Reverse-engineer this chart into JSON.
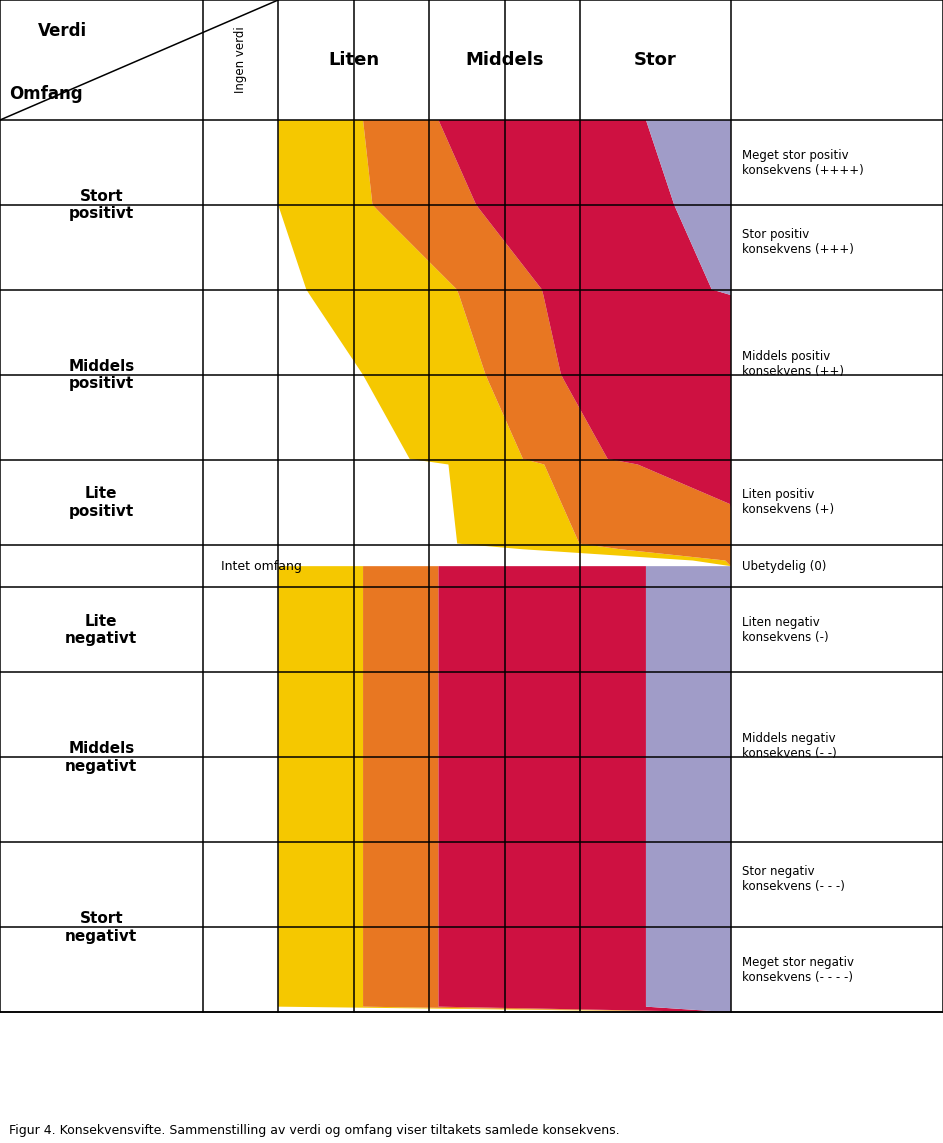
{
  "caption": "Figur 4. Konsekvensvifte. Sammenstilling av verdi og omfang viser tiltakets samlede konsekvens.",
  "colors": {
    "yellow": "#F5C800",
    "orange": "#E87722",
    "red": "#CE1141",
    "purple": "#A09CC8",
    "white": "#FFFFFF",
    "border": "#000000"
  },
  "col_header_labels": [
    "Ingen verdi",
    "Liten",
    "Middels",
    "Stor"
  ],
  "row_labels": [
    "Stort\npositivt",
    "Middels\npositivt",
    "Lite\npositivt",
    "Intet omfang",
    "Lite\nnegativt",
    "Middels\nnegativt",
    "Stort\nnegativt"
  ],
  "consequence_labels": [
    "Meget stor positiv\nkonsekvens (++++)",
    "Stor positiv\nkonsekvens (+++)",
    "Middels positiv\nkonsekvens (++)",
    "Liten positiv\nkonsekvens (+)",
    "Ubetydelig (0)",
    "Liten negativ\nkonsekvens (-)",
    "Middels negativ\nkonsekvens (- -)",
    "Stor negativ\nkonsekvens (- - -)",
    "Meget stor negativ\nkonsekvens (- - - -)"
  ]
}
